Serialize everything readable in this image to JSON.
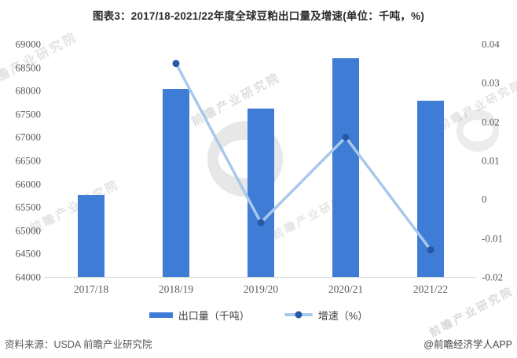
{
  "title": "图表3：2017/18-2021/22年度全球豆粕出口量及增速(单位：千吨，%)",
  "legend": {
    "bar_label": "出口量（千吨）",
    "line_label": "增速（%）"
  },
  "footer": {
    "source": "资料来源：USDA 前瞻产业研究院",
    "credit": "@前瞻经济学人APP"
  },
  "watermark": {
    "text": "前瞻产业研究院"
  },
  "colors": {
    "bar": "#3E7CD6",
    "line": "#A9C8EC",
    "marker": "#2558A6",
    "axis_line": "#D9D9D9",
    "tick_text": "#595959",
    "title_text": "#2B2B2B"
  },
  "chart_data": {
    "type": "bar+line",
    "title": "图表3：2017/18-2021/22年度全球豆粕出口量及增速(单位：千吨，%)",
    "categories": [
      "2017/18",
      "2018/19",
      "2019/20",
      "2020/21",
      "2021/22"
    ],
    "series": [
      {
        "name": "出口量（千吨）",
        "type": "bar",
        "axis": "left",
        "values": [
          65750,
          68030,
          67610,
          68700,
          67790
        ]
      },
      {
        "name": "增速（%）",
        "type": "line",
        "axis": "right",
        "values": [
          null,
          0.035,
          -0.006,
          0.016,
          -0.013
        ]
      }
    ],
    "left_axis": {
      "min": 64000,
      "max": 69000,
      "step": 500,
      "ticks": [
        "69000",
        "68500",
        "68000",
        "67500",
        "67000",
        "66500",
        "66000",
        "65500",
        "65000",
        "64500",
        "64000"
      ]
    },
    "right_axis": {
      "min": -0.02,
      "max": 0.04,
      "step": 0.01,
      "ticks": [
        "0.04",
        "0.03",
        "0.02",
        "0.01",
        "0",
        "-0.01",
        "-0.02"
      ]
    },
    "grid": false,
    "legend_position": "bottom"
  }
}
